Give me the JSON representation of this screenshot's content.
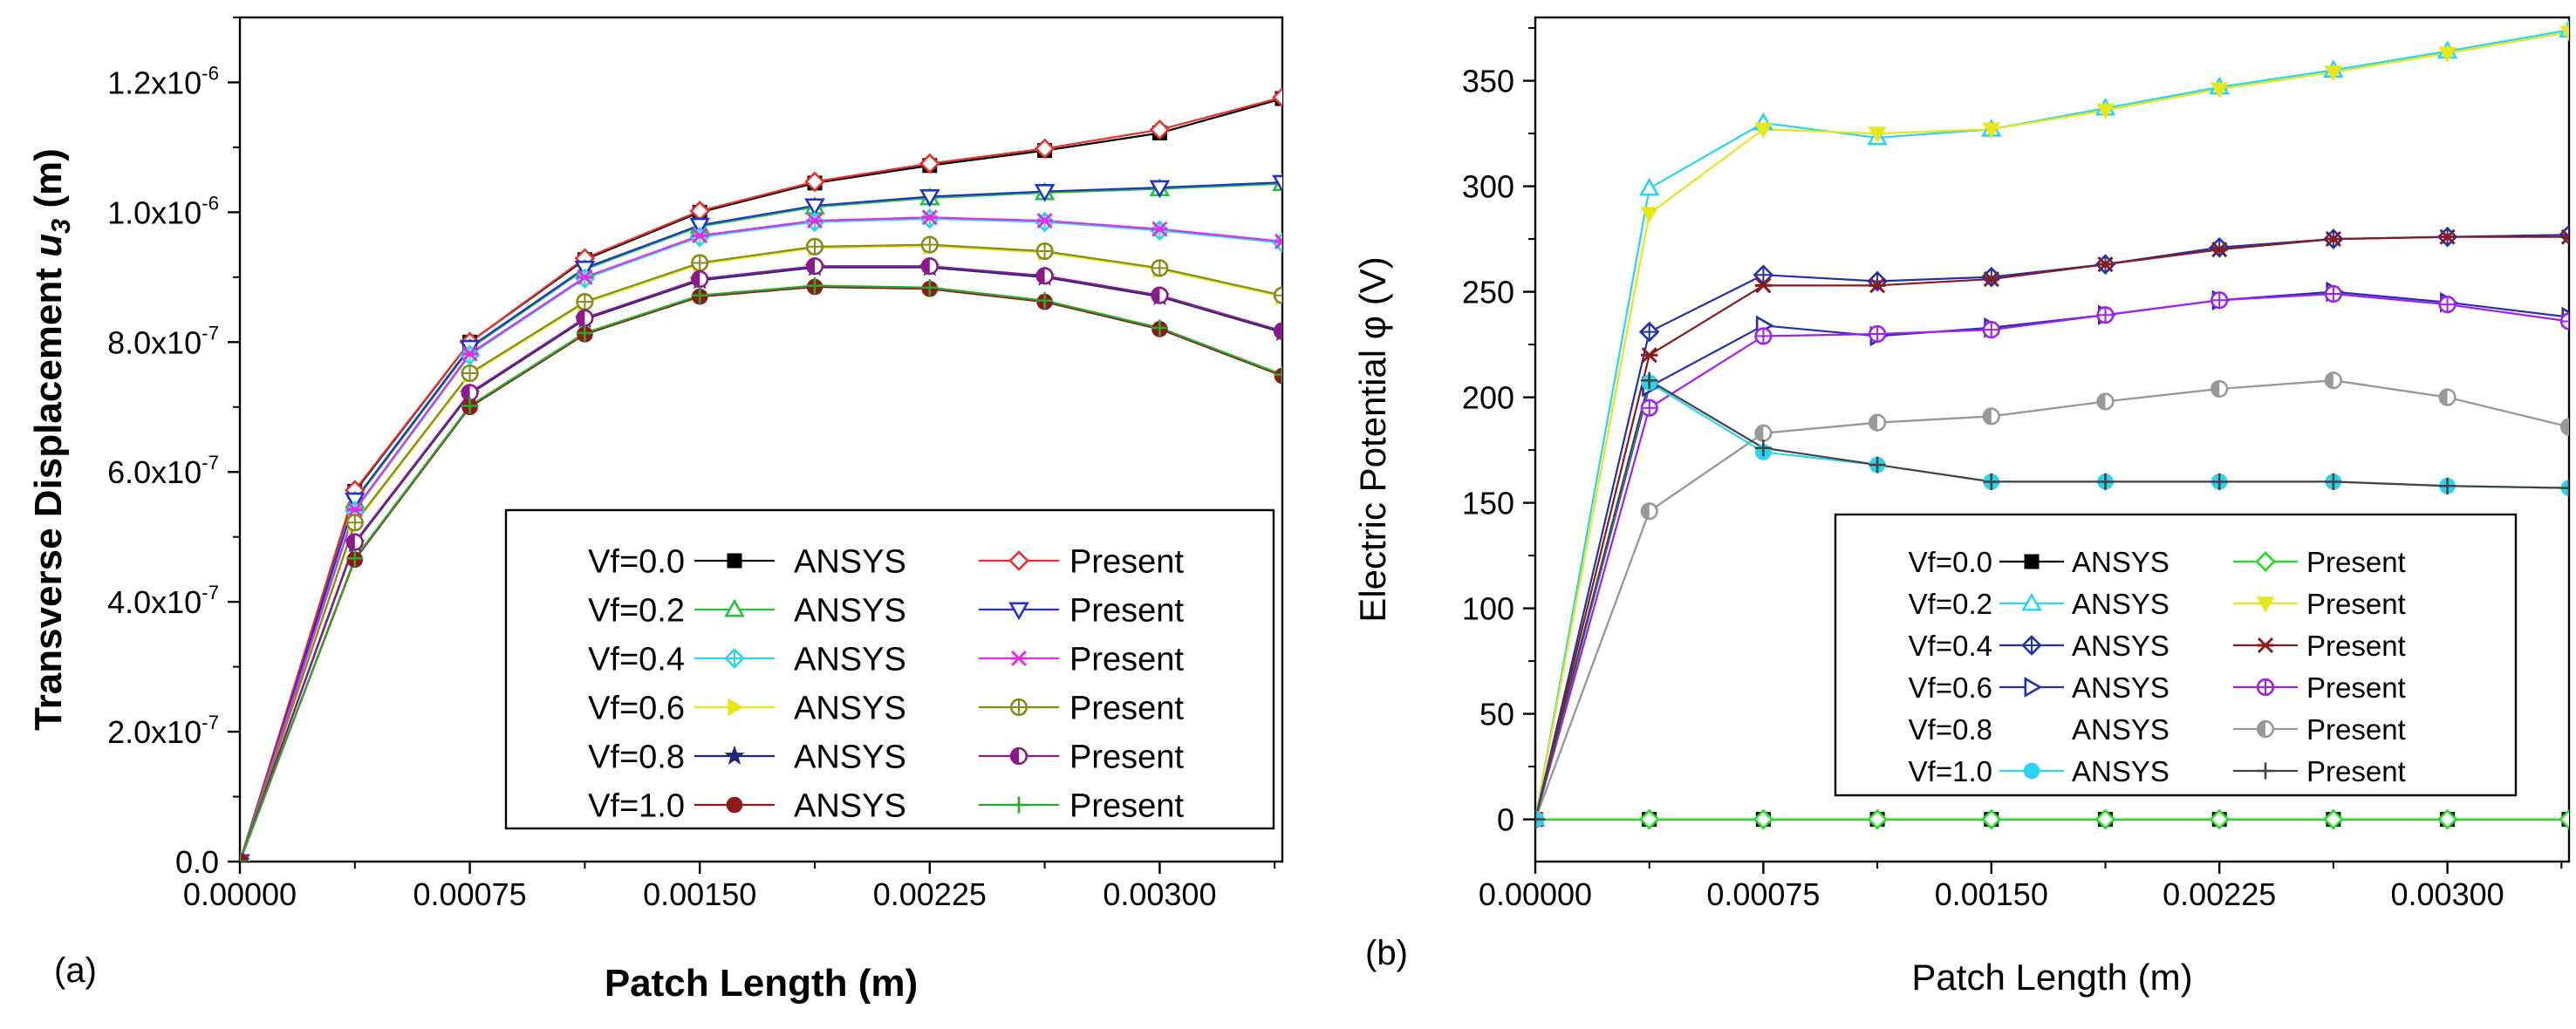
{
  "chart_data": [
    {
      "panel_label": "(a)",
      "type": "line",
      "xlabel": "Patch Length (m)",
      "ylabel": "Transverse Displacement u3 (m)",
      "ylabel_main": "Transverse Displacement ",
      "ylabel_var": "u",
      "ylabel_sub": "3",
      "ylabel_unit": " (m)",
      "xlim": [
        0,
        0.0034
      ],
      "ylim": [
        0,
        1.3e-06
      ],
      "x_ticks": [
        0,
        0.00075,
        0.0015,
        0.00225,
        0.003
      ],
      "x_tick_labels": [
        "0.00000",
        "0.00075",
        "0.00150",
        "0.00225",
        "0.00300"
      ],
      "y_ticks": [
        0,
        2e-07,
        4e-07,
        6e-07,
        8e-07,
        1e-06,
        1.2e-06
      ],
      "y_tick_labels": [
        {
          "mant": "0.0",
          "exp": ""
        },
        {
          "mant": "2.0x10",
          "exp": "-7"
        },
        {
          "mant": "4.0x10",
          "exp": "-7"
        },
        {
          "mant": "6.0x10",
          "exp": "-7"
        },
        {
          "mant": "8.0x10",
          "exp": "-7"
        },
        {
          "mant": "1.0x10",
          "exp": "-6"
        },
        {
          "mant": "1.2x10",
          "exp": "-6"
        }
      ],
      "legend_position": "bottom-right",
      "legend_rows": [
        {
          "label": "Vf=0.0",
          "a": 0,
          "p": 1
        },
        {
          "label": "Vf=0.2",
          "a": 2,
          "p": 3
        },
        {
          "label": "Vf=0.4",
          "a": 4,
          "p": 5
        },
        {
          "label": "Vf=0.6",
          "a": 6,
          "p": 7
        },
        {
          "label": "Vf=0.8",
          "a": 8,
          "p": 9
        },
        {
          "label": "Vf=1.0",
          "a": 10,
          "p": 11
        }
      ],
      "x": [
        0,
        0.000375,
        0.00075,
        0.001125,
        0.0015,
        0.001875,
        0.00225,
        0.002625,
        0.003,
        0.0034
      ],
      "series": [
        {
          "name": "ANSYS",
          "color": "#000000",
          "marker": "square",
          "values": [
            0,
            5.7e-07,
            8e-07,
            9.27e-07,
            1e-06,
            1.045e-06,
            1.072e-06,
            1.095e-06,
            1.122e-06,
            1.175e-06
          ]
        },
        {
          "name": "Present",
          "color": "#e8302a",
          "marker": "diamond-open",
          "values": [
            0,
            5.72e-07,
            8e-07,
            9.29e-07,
            1.002e-06,
            1.047e-06,
            1.075e-06,
            1.098e-06,
            1.127e-06,
            1.177e-06
          ]
        },
        {
          "name": "ANSYS",
          "color": "#22c33a",
          "marker": "triangle-up-open",
          "values": [
            0,
            5.55e-07,
            7.9e-07,
            9.12e-07,
            9.78e-07,
            1.008e-06,
            1.022e-06,
            1.03e-06,
            1.036e-06,
            1.044e-06
          ]
        },
        {
          "name": "Present",
          "color": "#2233c8",
          "marker": "triangle-down-open",
          "values": [
            0,
            5.57e-07,
            7.92e-07,
            9.14e-07,
            9.8e-07,
            1.01e-06,
            1.024e-06,
            1.032e-06,
            1.038e-06,
            1.046e-06
          ]
        },
        {
          "name": "ANSYS",
          "color": "#2ad4ee",
          "marker": "diamond-cross",
          "values": [
            0,
            5.4e-07,
            7.8e-07,
            8.98e-07,
            9.62e-07,
            9.85e-07,
            9.9e-07,
            9.85e-07,
            9.72e-07,
            9.53e-07
          ]
        },
        {
          "name": "Present",
          "color": "#e030e0",
          "marker": "x-star",
          "values": [
            0,
            5.42e-07,
            7.82e-07,
            9e-07,
            9.64e-07,
            9.87e-07,
            9.92e-07,
            9.87e-07,
            9.74e-07,
            9.55e-07
          ]
        },
        {
          "name": "ANSYS",
          "color": "#e6e61a",
          "marker": "triangle-right",
          "values": [
            0,
            5.2e-07,
            7.5e-07,
            8.6e-07,
            9.2e-07,
            9.45e-07,
            9.48e-07,
            9.38e-07,
            9.12e-07,
            8.7e-07
          ]
        },
        {
          "name": "Present",
          "color": "#8a8a1a",
          "marker": "circle-plus",
          "values": [
            0,
            5.22e-07,
            7.52e-07,
            8.62e-07,
            9.22e-07,
            9.47e-07,
            9.5e-07,
            9.4e-07,
            9.14e-07,
            8.72e-07
          ]
        },
        {
          "name": "ANSYS",
          "color": "#1b2a7a",
          "marker": "star",
          "values": [
            0,
            4.9e-07,
            7.2e-07,
            8.35e-07,
            8.95e-07,
            9.15e-07,
            9.15e-07,
            9e-07,
            8.7e-07,
            8.15e-07
          ]
        },
        {
          "name": "Present",
          "color": "#8b1a8b",
          "marker": "circle-half",
          "values": [
            0,
            4.92e-07,
            7.22e-07,
            8.37e-07,
            8.97e-07,
            9.17e-07,
            9.17e-07,
            9.02e-07,
            8.72e-07,
            8.17e-07
          ]
        },
        {
          "name": "ANSYS",
          "color": "#8b1a1a",
          "marker": "circle",
          "values": [
            0,
            4.65e-07,
            7e-07,
            8.12e-07,
            8.7e-07,
            8.85e-07,
            8.82e-07,
            8.62e-07,
            8.2e-07,
            7.48e-07
          ]
        },
        {
          "name": "Present",
          "color": "#2aa82a",
          "marker": "plus",
          "values": [
            0,
            4.67e-07,
            7.02e-07,
            8.14e-07,
            8.72e-07,
            8.87e-07,
            8.84e-07,
            8.64e-07,
            8.22e-07,
            7.5e-07
          ]
        }
      ]
    },
    {
      "panel_label": "(b)",
      "type": "line",
      "xlabel": "Patch Length (m)",
      "ylabel": "Electric Potential φ (V)",
      "xlim": [
        0,
        0.0034
      ],
      "ylim": [
        -20,
        380
      ],
      "x_ticks": [
        0,
        0.00075,
        0.0015,
        0.00225,
        0.003
      ],
      "x_tick_labels": [
        "0.00000",
        "0.00075",
        "0.00150",
        "0.00225",
        "0.00300"
      ],
      "y_ticks": [
        0,
        50,
        100,
        150,
        200,
        250,
        300,
        350
      ],
      "y_tick_labels": [
        "0",
        "50",
        "100",
        "150",
        "200",
        "250",
        "300",
        "350"
      ],
      "legend_position": "bottom-right",
      "legend_rows": [
        {
          "label": "Vf=0.0",
          "a": 0,
          "p": 1
        },
        {
          "label": "Vf=0.2",
          "a": 2,
          "p": 3
        },
        {
          "label": "Vf=0.4",
          "a": 4,
          "p": 5
        },
        {
          "label": "Vf=0.6",
          "a": 6,
          "p": 7
        },
        {
          "label": "Vf=0.8",
          "a": 8,
          "p": 9
        },
        {
          "label": "Vf=1.0",
          "a": 10,
          "p": 11
        }
      ],
      "x": [
        0,
        0.000375,
        0.00075,
        0.001125,
        0.0015,
        0.001875,
        0.00225,
        0.002625,
        0.003,
        0.0034
      ],
      "series": [
        {
          "name": "ANSYS",
          "color": "#000000",
          "marker": "square",
          "values": [
            0,
            0,
            0,
            0,
            0,
            0,
            0,
            0,
            0,
            0
          ]
        },
        {
          "name": "Present",
          "color": "#22dd22",
          "marker": "diamond-open",
          "values": [
            0,
            0,
            0,
            0,
            0,
            0,
            0,
            0,
            0,
            0
          ]
        },
        {
          "name": "ANSYS",
          "color": "#2ad4ee",
          "marker": "triangle-up-open",
          "values": [
            0,
            299,
            330,
            323,
            327,
            337,
            347,
            355,
            364,
            374
          ]
        },
        {
          "name": "Present",
          "color": "#e6e61a",
          "marker": "triangle-down",
          "values": [
            0,
            287,
            327,
            325,
            327,
            336,
            346,
            354,
            363,
            373
          ]
        },
        {
          "name": "ANSYS",
          "color": "#2233aa",
          "marker": "diamond-cross",
          "values": [
            0,
            231,
            258,
            255,
            257,
            263,
            271,
            275,
            276,
            277
          ]
        },
        {
          "name": "Present",
          "color": "#8b1a1a",
          "marker": "x-star",
          "values": [
            0,
            220,
            253,
            253,
            256,
            263,
            270,
            275,
            276,
            276
          ]
        },
        {
          "name": "ANSYS",
          "color": "#2233aa",
          "marker": "triangle-right-open",
          "values": [
            0,
            205,
            234,
            229,
            233,
            239,
            246,
            250,
            245,
            238
          ]
        },
        {
          "name": "Present",
          "color": "#a020f0",
          "marker": "circle-plus",
          "values": [
            0,
            195,
            229,
            230,
            232,
            239,
            246,
            249,
            244,
            236
          ]
        },
        {
          "name": "ANSYS",
          "color": "#999999",
          "marker": "none",
          "values": [
            0,
            146,
            183,
            188,
            191,
            198,
            204,
            208,
            200,
            186
          ]
        },
        {
          "name": "Present",
          "color": "#999999",
          "marker": "circle-half",
          "values": [
            0,
            146,
            183,
            188,
            191,
            198,
            204,
            208,
            200,
            186
          ]
        },
        {
          "name": "ANSYS",
          "color": "#2ad4ee",
          "marker": "circle",
          "values": [
            0,
            207,
            174,
            168,
            160,
            160,
            160,
            160,
            158,
            157
          ]
        },
        {
          "name": "Present",
          "color": "#444444",
          "marker": "plus",
          "values": [
            0,
            208,
            176,
            168,
            160,
            160,
            160,
            160,
            158,
            157
          ]
        }
      ]
    }
  ]
}
